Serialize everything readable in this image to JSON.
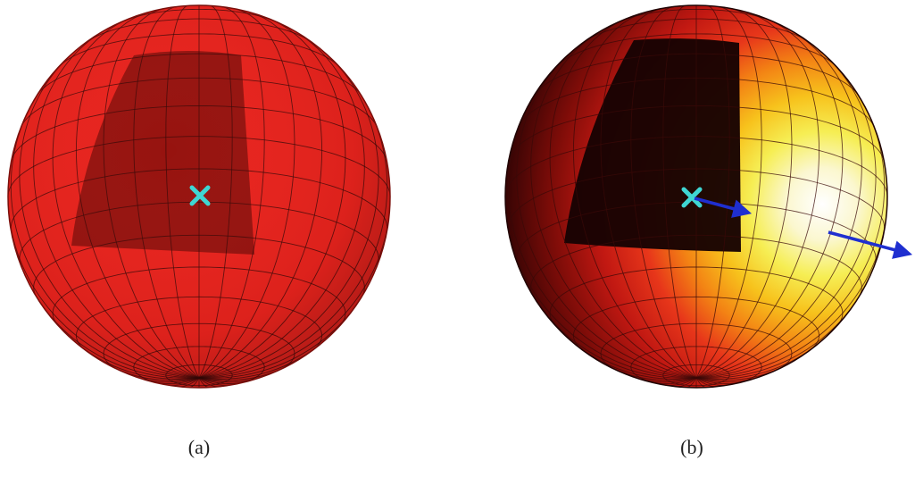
{
  "panels": [
    {
      "caption": "(a)",
      "shading": "uniform",
      "marker": "x",
      "base_color": "#e8231d",
      "patch_color": "#8f120e",
      "marker_color": "#3fd6d3"
    },
    {
      "caption": "(b)",
      "shading": "heat",
      "marker": "x",
      "arrows": 2,
      "patch_color": "#180303",
      "marker_color": "#3fd6d3",
      "arrow_color": "#1f2fd0"
    }
  ],
  "colors": {
    "grid_line": "#3a0a08",
    "background": "#ffffff"
  }
}
